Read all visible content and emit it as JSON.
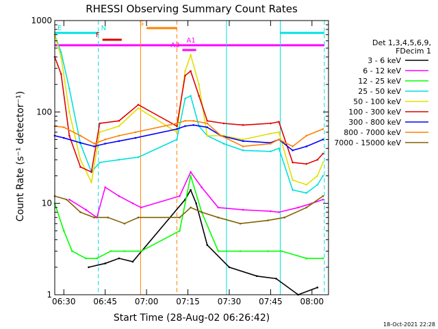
{
  "chart_data": {
    "type": "line",
    "title": "RHESSI Observing Summary Count Rates",
    "xlabel": "Start Time (28-Aug-02 06:26:42)",
    "ylabel": "Count Rate (s⁻¹ detector⁻¹)",
    "y_scale": "log",
    "ylim": [
      1,
      1000
    ],
    "xlim": [
      "06:26:42",
      "08:06:00"
    ],
    "x_ticks": [
      "06:30",
      "06:45",
      "07:00",
      "07:15",
      "07:30",
      "07:45",
      "08:00"
    ],
    "y_ticks": [
      "1",
      "10",
      "100",
      "1000"
    ],
    "legend_title": [
      "Det 1,3,4,5,6,9,",
      "FDecim 1"
    ],
    "legend_position": "right",
    "timestamp": "18-Oct-2021 22:28",
    "flag_bars": [
      {
        "label": "E",
        "color": "#00e0e0",
        "start": "06:26:42",
        "end": "06:42:30"
      },
      {
        "label": "N",
        "color": "#00e0e0",
        "start": "07:48:30",
        "end": "08:04:30"
      },
      {
        "label": "F",
        "color": "#e00000",
        "start": "06:44:00",
        "end": "06:51:00"
      },
      {
        "label": "S",
        "color": "#ff8000",
        "start": "07:00:00",
        "end": "07:11:00"
      },
      {
        "label": "A1",
        "color": "#ff00ff",
        "start": "06:26:42",
        "end": "08:04:30"
      },
      {
        "label": "A3",
        "color": "#ff00ff",
        "start": "07:13:00",
        "end": "07:18:00"
      }
    ],
    "vertical_lines": [
      {
        "time": "06:26:42",
        "color": "#00e0e0",
        "style": "solid"
      },
      {
        "time": "06:42:30",
        "color": "#00e0e0",
        "style": "dashed"
      },
      {
        "time": "06:57:50",
        "color": "#ff8000",
        "style": "solid"
      },
      {
        "time": "07:11:00",
        "color": "#ff8000",
        "style": "dashed"
      },
      {
        "time": "07:29:00",
        "color": "#00e0e0",
        "style": "solid"
      },
      {
        "time": "07:48:30",
        "color": "#00e0e0",
        "style": "solid"
      },
      {
        "time": "08:04:30",
        "color": "#00e0e0",
        "style": "dashed"
      }
    ],
    "series": [
      {
        "name": "3 - 6 keV",
        "color": "#000000",
        "x": [
          "06:39",
          "06:45",
          "06:50",
          "06:55",
          "07:14",
          "07:16",
          "07:18",
          "07:22",
          "07:30",
          "07:40",
          "07:47",
          "07:55",
          "08:02"
        ],
        "values": [
          2.0,
          2.2,
          2.5,
          2.3,
          11,
          14,
          10,
          3.5,
          2.0,
          1.6,
          1.5,
          1.0,
          1.2
        ]
      },
      {
        "name": "6 - 12 keV",
        "color": "#ff00ff",
        "x": [
          "06:32",
          "06:38",
          "06:42",
          "06:45",
          "06:50",
          "06:55",
          "06:58",
          "07:12",
          "07:16",
          "07:20",
          "07:26",
          "07:35",
          "07:45",
          "07:48",
          "07:55",
          "08:00",
          "08:04"
        ],
        "values": [
          11,
          8.5,
          7,
          15,
          12,
          10,
          9,
          12,
          22,
          15,
          9,
          8.5,
          8.2,
          8,
          9,
          10,
          11
        ]
      },
      {
        "name": "12 - 25 keV",
        "color": "#00ff00",
        "x": [
          "06:26:42",
          "06:30",
          "06:33",
          "06:38",
          "06:42",
          "06:47",
          "06:52",
          "06:58",
          "07:12",
          "07:16",
          "07:20",
          "07:26",
          "07:34",
          "07:44",
          "07:49",
          "07:58",
          "08:04"
        ],
        "values": [
          10,
          5,
          3,
          2.5,
          2.5,
          3,
          3,
          3,
          5,
          20,
          8,
          3,
          3,
          3,
          3,
          2.5,
          2.5
        ]
      },
      {
        "name": "25 - 50 keV",
        "color": "#00e0e0",
        "x": [
          "06:26:42",
          "06:29",
          "06:32",
          "06:36",
          "06:40",
          "06:43",
          "06:50",
          "06:57",
          "07:11",
          "07:14",
          "07:16",
          "07:19",
          "07:22",
          "07:28",
          "07:35",
          "07:45",
          "07:48",
          "07:53",
          "07:58",
          "08:02",
          "08:04"
        ],
        "values": [
          700,
          450,
          180,
          45,
          22,
          28,
          30,
          32,
          50,
          140,
          150,
          70,
          55,
          45,
          38,
          37,
          40,
          14,
          13,
          16,
          20
        ]
      },
      {
        "name": "50 - 100 keV",
        "color": "#e0e000",
        "x": [
          "06:26:42",
          "06:29",
          "06:32",
          "06:36",
          "06:40",
          "06:43",
          "06:50",
          "06:57",
          "07:11",
          "07:14",
          "07:16",
          "07:19",
          "07:22",
          "07:28",
          "07:35",
          "07:45",
          "07:48",
          "07:53",
          "07:58",
          "08:02",
          "08:04"
        ],
        "values": [
          700,
          400,
          100,
          30,
          17,
          60,
          70,
          110,
          60,
          280,
          420,
          200,
          55,
          55,
          50,
          58,
          60,
          18,
          16,
          20,
          28
        ]
      },
      {
        "name": "100 - 300 keV",
        "color": "#e00000",
        "x": [
          "06:26:42",
          "06:29",
          "06:32",
          "06:36",
          "06:40",
          "06:43",
          "06:50",
          "06:57",
          "07:11",
          "07:14",
          "07:16",
          "07:19",
          "07:22",
          "07:28",
          "07:35",
          "07:45",
          "07:48",
          "07:53",
          "07:58",
          "08:02",
          "08:04"
        ],
        "values": [
          400,
          260,
          55,
          25,
          22,
          75,
          80,
          120,
          70,
          250,
          280,
          150,
          80,
          75,
          72,
          75,
          78,
          28,
          27,
          30,
          35
        ]
      },
      {
        "name": "300 - 800 keV",
        "color": "#0000ff",
        "x": [
          "06:26:42",
          "06:30",
          "06:36",
          "06:41",
          "06:45",
          "06:50",
          "06:56",
          "07:11",
          "07:14",
          "07:17",
          "07:22",
          "07:27",
          "07:35",
          "07:45",
          "07:48",
          "07:53",
          "07:58",
          "08:04"
        ],
        "values": [
          55,
          52,
          46,
          42,
          45,
          48,
          52,
          65,
          70,
          72,
          68,
          55,
          48,
          46,
          50,
          38,
          42,
          50
        ]
      },
      {
        "name": "800 - 7000 keV",
        "color": "#ff8000",
        "x": [
          "06:26:42",
          "06:30",
          "06:36",
          "06:41",
          "06:45",
          "06:50",
          "06:56",
          "07:11",
          "07:14",
          "07:17",
          "07:22",
          "07:27",
          "07:35",
          "07:45",
          "07:48",
          "07:53",
          "07:58",
          "08:04"
        ],
        "values": [
          70,
          68,
          55,
          45,
          50,
          55,
          60,
          75,
          80,
          80,
          75,
          55,
          42,
          45,
          50,
          42,
          55,
          65
        ]
      },
      {
        "name": "7000 - 15000 keV",
        "color": "#806000",
        "x": [
          "06:26:42",
          "06:31",
          "06:36",
          "06:41",
          "06:46",
          "06:52",
          "06:57",
          "07:12",
          "07:16",
          "07:20",
          "07:26",
          "07:34",
          "07:44",
          "07:50",
          "07:58",
          "08:04"
        ],
        "values": [
          12,
          11,
          8,
          7,
          7,
          6,
          7,
          7,
          9,
          8,
          7,
          6,
          6.5,
          7,
          9,
          12
        ]
      }
    ]
  }
}
